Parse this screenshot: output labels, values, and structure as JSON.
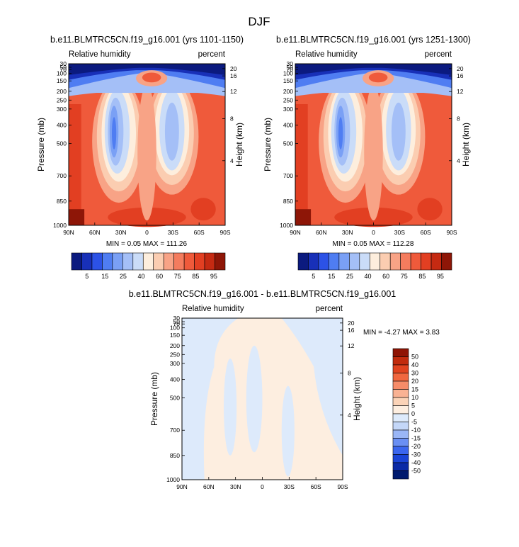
{
  "figure": {
    "title": "DJF"
  },
  "colors": {
    "rh_levels": [
      "#0b1a7f",
      "#1830b8",
      "#2c52e6",
      "#4f7df2",
      "#7aa0f5",
      "#a4bff7",
      "#cadcf8",
      "#fdeedd",
      "#fbcdb1",
      "#f8a386",
      "#f47c5e",
      "#ef5a3b",
      "#e23f22",
      "#c52a12",
      "#8e1607"
    ],
    "diff_levels": [
      "#001a6e",
      "#0a2aa6",
      "#1a44d6",
      "#3b66ee",
      "#6a8ff3",
      "#9ab6f6",
      "#c4d7f8",
      "#ddeafb",
      "#fdeee0",
      "#fbd3b7",
      "#f9b293",
      "#f68c69",
      "#f0673f",
      "#e0431f",
      "#c12b0d",
      "#8f1404"
    ]
  },
  "panels": [
    {
      "id": "case1",
      "title": "b.e11.BLMTRC5CN.f19_g16.001 (yrs 1101-1150)",
      "left_label": "Relative humidity",
      "right_label": "percent",
      "minmax": "MIN =  0.05  MAX = 111.26"
    },
    {
      "id": "case2",
      "title": "b.e11.BLMTRC5CN.f19_g16.001 (yrs 1251-1300)",
      "left_label": "Relative humidity",
      "right_label": "percent",
      "minmax": "MIN =  0.05  MAX = 112.28"
    },
    {
      "id": "diff",
      "title": "b.e11.BLMTRC5CN.f19_g16.001 - b.e11.BLMTRC5CN.f19_g16.001",
      "left_label": "Relative humidity",
      "right_label": "percent",
      "minmax": "MIN = -4.27  MAX =  3.83"
    }
  ],
  "chart_data": [
    {
      "type": "heatmap",
      "title": "b.e11.BLMTRC5CN.f19_g16.001 (yrs 1101-1150)",
      "subtitle_left": "Relative humidity",
      "subtitle_right": "percent",
      "xlabel": "",
      "ylabel": "Pressure (mb)",
      "ylabel_right": "Height (km)",
      "x_ticks": [
        "90N",
        "60N",
        "30N",
        "0",
        "30S",
        "60S",
        "90S"
      ],
      "y_ticks": [
        "30",
        "50",
        "70",
        "100",
        "150",
        "200",
        "250",
        "300",
        "400",
        "500",
        "700",
        "850",
        "1000"
      ],
      "y_right_ticks": [
        "20",
        "16",
        "12",
        "8",
        "4"
      ],
      "colorbar_labels": [
        "5",
        "15",
        "25",
        "40",
        "60",
        "75",
        "85",
        "95"
      ],
      "min": 0.05,
      "max": 111.26
    },
    {
      "type": "heatmap",
      "title": "b.e11.BLMTRC5CN.f19_g16.001 (yrs 1251-1300)",
      "subtitle_left": "Relative humidity",
      "subtitle_right": "percent",
      "xlabel": "",
      "ylabel": "Pressure (mb)",
      "ylabel_right": "Height (km)",
      "x_ticks": [
        "90N",
        "60N",
        "30N",
        "0",
        "30S",
        "60S",
        "90S"
      ],
      "y_ticks": [
        "30",
        "50",
        "70",
        "100",
        "150",
        "200",
        "250",
        "300",
        "400",
        "500",
        "700",
        "850",
        "1000"
      ],
      "y_right_ticks": [
        "20",
        "16",
        "12",
        "8",
        "4"
      ],
      "colorbar_labels": [
        "5",
        "15",
        "25",
        "40",
        "60",
        "75",
        "85",
        "95"
      ],
      "min": 0.05,
      "max": 112.28
    },
    {
      "type": "heatmap",
      "title": "b.e11.BLMTRC5CN.f19_g16.001 - b.e11.BLMTRC5CN.f19_g16.001",
      "subtitle_left": "Relative humidity",
      "subtitle_right": "percent",
      "xlabel": "",
      "ylabel": "Pressure (mb)",
      "ylabel_right": "Height (km)",
      "x_ticks": [
        "90N",
        "60N",
        "30N",
        "0",
        "30S",
        "60S",
        "90S"
      ],
      "y_ticks": [
        "30",
        "50",
        "70",
        "100",
        "150",
        "200",
        "250",
        "300",
        "400",
        "500",
        "700",
        "850",
        "1000"
      ],
      "y_right_ticks": [
        "20",
        "16",
        "12",
        "8",
        "4"
      ],
      "colorbar_labels": [
        "50",
        "40",
        "30",
        "20",
        "15",
        "10",
        "5",
        "0",
        "-5",
        "-10",
        "-15",
        "-20",
        "-30",
        "-40",
        "-50"
      ],
      "min": -4.27,
      "max": 3.83
    }
  ]
}
